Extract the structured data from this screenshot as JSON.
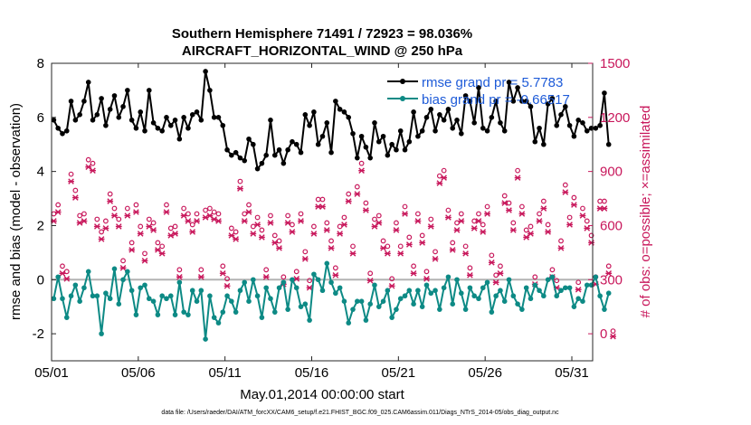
{
  "chart_data": {
    "type": "line",
    "title": "Southern Hemisphere 71491 / 72923 = 98.036%",
    "subtitle": "AIRCRAFT_HORIZONTAL_WIND @ 250 hPa",
    "xlabel": "May.01,2014 00:00:00 start",
    "ylabel": "rmse and bias (model - observation)",
    "y2label": "# of obs: o=possible; ×=assimilated",
    "xlim": [
      0,
      31.2
    ],
    "ylim": [
      -3,
      8
    ],
    "y2lim": [
      -150,
      1500
    ],
    "x_ticks": [
      0,
      5,
      10,
      15,
      20,
      25,
      30
    ],
    "x_tick_labels": [
      "05/01",
      "05/06",
      "05/11",
      "05/16",
      "05/21",
      "05/26",
      "05/31"
    ],
    "y_ticks": [
      -2,
      0,
      2,
      4,
      6,
      8
    ],
    "y2_ticks": [
      0,
      300,
      600,
      900,
      1200,
      1500
    ],
    "colors": {
      "rmse": "#000000",
      "bias": "#0d8a85",
      "obs": "#c8175b",
      "legend_text": "#1e5bd8",
      "zero_line": "#b3b3b3"
    },
    "series": [
      {
        "name": "rmse grand pr = 5.7783",
        "axis": "left",
        "values": [
          5.9,
          5.6,
          5.4,
          5.5,
          6.6,
          5.9,
          6.1,
          6.6,
          7.3,
          5.9,
          6.1,
          6.7,
          5.7,
          6.3,
          6.8,
          6.0,
          6.4,
          7.0,
          5.9,
          5.6,
          6.2,
          5.5,
          7.0,
          5.8,
          5.6,
          5.5,
          6.0,
          5.7,
          5.9,
          5.2,
          6.0,
          5.6,
          6.1,
          6.2,
          5.9,
          7.7,
          7.0,
          6.0,
          6.0,
          5.7,
          4.8,
          4.6,
          4.7,
          4.5,
          4.4,
          5.2,
          5.0,
          4.1,
          4.3,
          4.6,
          5.9,
          4.6,
          4.8,
          4.3,
          4.8,
          5.1,
          5.0,
          4.7,
          6.1,
          5.7,
          6.2,
          5.0,
          5.3,
          5.8,
          4.7,
          6.6,
          6.3,
          6.2,
          6.0,
          5.4,
          4.5,
          5.3,
          4.9,
          4.5,
          5.8,
          5.1,
          5.3,
          4.6,
          5.0,
          4.8,
          5.5,
          4.8,
          5.1,
          6.2,
          5.3,
          5.5,
          6.0,
          6.3,
          5.5,
          6.1,
          5.9,
          6.3,
          5.6,
          5.9,
          5.4,
          6.8,
          6.6,
          5.8,
          7.1,
          5.6,
          5.5,
          6.0,
          6.6,
          5.8,
          5.5,
          7.3,
          6.6,
          7.1,
          6.6,
          6.6,
          6.4,
          5.1,
          5.6,
          5.0,
          6.5,
          6.7,
          5.7,
          6.1,
          6.4,
          5.7,
          5.3,
          5.9,
          5.8,
          5.5,
          5.6,
          5.6,
          5.7,
          6.9,
          5.0
        ]
      },
      {
        "name": "bias grand pr = -0.66517",
        "axis": "left",
        "values": [
          -0.7,
          0.1,
          -0.7,
          -1.4,
          -0.6,
          -0.2,
          -0.8,
          -0.3,
          0.3,
          -0.6,
          -0.6,
          -2.0,
          -0.5,
          -0.7,
          0.4,
          -0.9,
          0.0,
          0.3,
          -0.4,
          -1.3,
          -0.3,
          -0.2,
          -0.7,
          -0.8,
          -1.3,
          -0.6,
          -0.7,
          -0.6,
          -1.3,
          -0.1,
          -1.2,
          -1.3,
          -0.4,
          -0.8,
          -0.4,
          -2.2,
          -0.6,
          -1.4,
          -1.6,
          -1.2,
          -0.6,
          -0.8,
          -1.2,
          -0.4,
          -0.1,
          -0.8,
          0.0,
          -0.6,
          -1.4,
          -0.3,
          -0.7,
          -1.2,
          -0.3,
          -0.1,
          -1.1,
          0.0,
          -0.3,
          -1.0,
          -0.9,
          -1.5,
          0.2,
          0.0,
          -0.4,
          0.6,
          -0.1,
          -0.5,
          -0.3,
          -0.8,
          -1.6,
          -1.1,
          -0.8,
          -0.8,
          -1.5,
          -0.9,
          -0.2,
          -1.0,
          -0.8,
          -0.4,
          -1.4,
          -1.1,
          -0.7,
          -0.6,
          -0.4,
          -0.9,
          -0.4,
          -1.0,
          -0.2,
          -0.5,
          -0.4,
          -1.1,
          -0.3,
          0.1,
          -0.9,
          0.0,
          -0.5,
          -1.1,
          -0.3,
          -0.6,
          -0.7,
          -0.3,
          -0.1,
          -1.2,
          -0.6,
          -0.4,
          -0.8,
          0.0,
          -0.6,
          -0.9,
          -1.1,
          -0.3,
          -0.7,
          -0.2,
          -0.4,
          -0.6,
          0.0,
          0.1,
          -0.6,
          -0.4,
          -0.3,
          -0.3,
          -1.0,
          -0.7,
          -0.8,
          -0.2,
          -0.2,
          0.1,
          -0.6,
          -1.1,
          -0.5
        ]
      },
      {
        "name": "possible",
        "axis": "right",
        "marker": "o",
        "values": [
          650,
          700,
          360,
          330,
          870,
          780,
          640,
          650,
          950,
          930,
          620,
          550,
          610,
          760,
          680,
          620,
          390,
          680,
          490,
          700,
          580,
          430,
          620,
          600,
          490,
          470,
          700,
          570,
          580,
          340,
          680,
          650,
          590,
          650,
          340,
          670,
          680,
          660,
          650,
          360,
          290,
          570,
          550,
          830,
          650,
          700,
          580,
          630,
          560,
          340,
          640,
          530,
          500,
          300,
          640,
          590,
          330,
          650,
          440,
          280,
          580,
          730,
          730,
          600,
          500,
          350,
          580,
          630,
          760,
          470,
          800,
          930,
          710,
          320,
          620,
          640,
          500,
          470,
          290,
          600,
          470,
          690,
          520,
          360,
          650,
          530,
          330,
          620,
          440,
          860,
          890,
          670,
          490,
          600,
          650,
          470,
          350,
          610,
          650,
          590,
          690,
          420,
          310,
          360,
          750,
          710,
          600,
          890,
          690,
          560,
          580,
          300,
          650,
          720,
          590,
          340,
          280,
          500,
          810,
          630,
          740,
          270,
          680,
          610,
          530,
          300,
          720,
          720,
          360,
          0
        ]
      },
      {
        "name": "assimilated",
        "axis": "right",
        "marker": "x",
        "values": [
          640,
          690,
          350,
          320,
          860,
          770,
          630,
          640,
          940,
          920,
          610,
          540,
          600,
          750,
          670,
          610,
          380,
          670,
          480,
          690,
          570,
          420,
          610,
          590,
          480,
          460,
          690,
          560,
          570,
          330,
          670,
          640,
          580,
          640,
          330,
          660,
          670,
          650,
          640,
          350,
          280,
          560,
          540,
          820,
          640,
          690,
          570,
          620,
          550,
          330,
          630,
          520,
          490,
          290,
          630,
          580,
          320,
          640,
          430,
          270,
          570,
          720,
          720,
          590,
          490,
          340,
          570,
          620,
          750,
          460,
          790,
          920,
          700,
          310,
          610,
          630,
          490,
          460,
          280,
          590,
          460,
          680,
          510,
          350,
          640,
          520,
          320,
          610,
          430,
          850,
          880,
          660,
          480,
          590,
          640,
          460,
          340,
          600,
          640,
          580,
          680,
          410,
          300,
          350,
          740,
          700,
          590,
          880,
          680,
          550,
          570,
          290,
          640,
          710,
          580,
          330,
          270,
          490,
          800,
          620,
          730,
          260,
          670,
          600,
          520,
          290,
          710,
          710,
          350,
          0
        ]
      }
    ],
    "legend": [
      "rmse grand pr = 5.7783",
      "bias grand pr = -0.66517"
    ],
    "legend_position": "top-right"
  },
  "footer": "data file: /Users/raeder/DAI/ATM_forcXX/CAM6_setup/f.e21.FHIST_BGC.f09_025.CAM6assim.011/Diags_NTrS_2014-05/obs_diag_output.nc"
}
